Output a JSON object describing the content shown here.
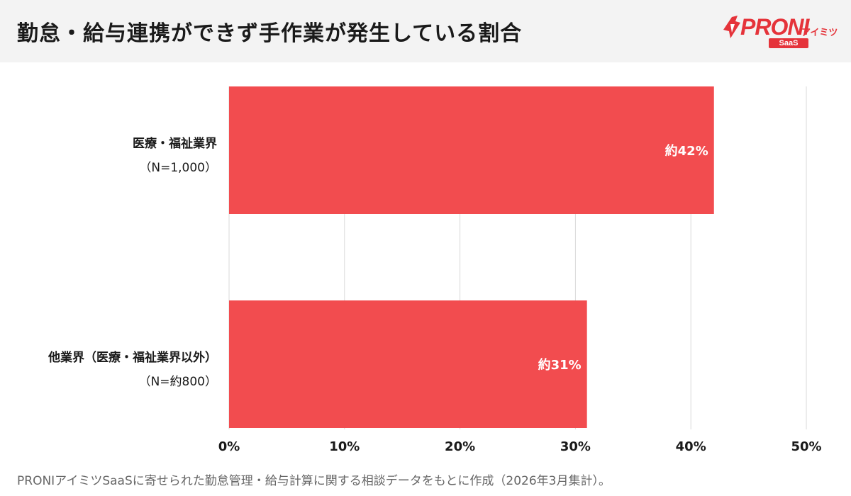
{
  "header": {
    "title": "勤怠・給与連携ができず手作業が発生している割合",
    "logo": {
      "brand": "PRONI",
      "brand_sub": "アイミツ",
      "badge": "SaaS"
    }
  },
  "chart_data": {
    "type": "bar",
    "orientation": "horizontal",
    "title": "勤怠・給与連携ができず手作業が発生している割合",
    "categories": [
      {
        "name": "医療・福祉業界",
        "n": "（N=1,000）"
      },
      {
        "name": "他業界（医療・福祉業界以外）",
        "n": "（N=約800）"
      }
    ],
    "values": [
      42,
      31
    ],
    "data_labels": [
      "約42%",
      "約31%"
    ],
    "unit": "%",
    "xlim": [
      0,
      50
    ],
    "x_ticks": [
      "0%",
      "10%",
      "20%",
      "30%",
      "40%",
      "50%"
    ],
    "grid": true,
    "bar_color": "#f24c4f",
    "grid_color": "#d9d9d9"
  },
  "footer": {
    "note": "PRONIアイミツSaaSに寄せられた勤怠管理・給与計算に関する相談データをもとに作成（2026年3月集計）。"
  }
}
